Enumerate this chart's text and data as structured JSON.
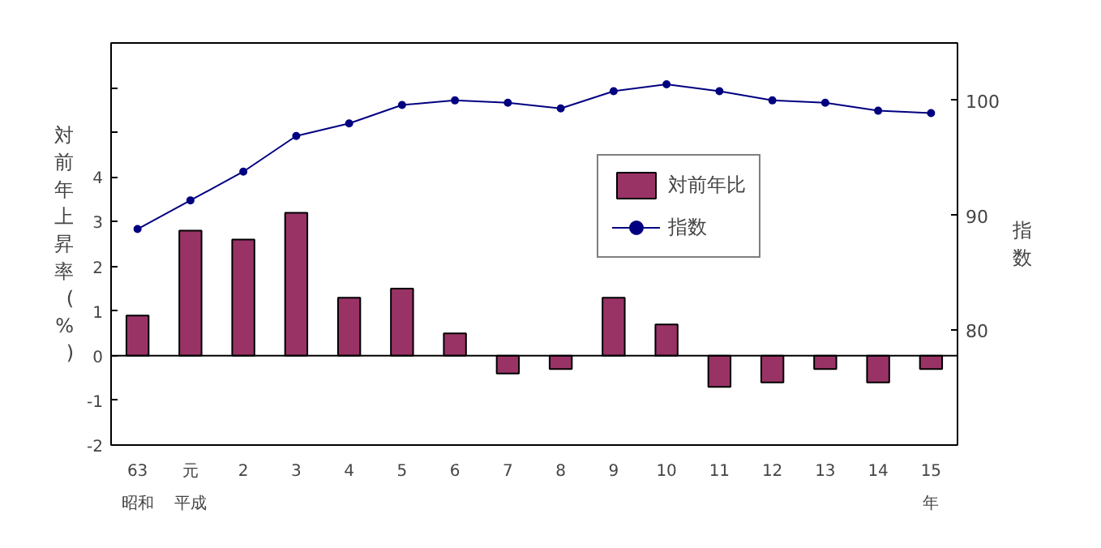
{
  "chart_data": {
    "type": "bar",
    "ylabel": "対前年上昇率 (%)",
    "y2label": "指数",
    "categories": [
      "63",
      "元",
      "2",
      "3",
      "4",
      "5",
      "6",
      "7",
      "8",
      "9",
      "10",
      "11",
      "12",
      "13",
      "14",
      "15"
    ],
    "series": [
      {
        "name": "対前年比",
        "color": "#993366",
        "values": [
          0.9,
          2.8,
          2.6,
          3.2,
          1.3,
          1.5,
          0.5,
          -0.4,
          -0.3,
          1.3,
          0.7,
          -0.7,
          -0.6,
          -0.3,
          -0.6,
          -0.3
        ]
      },
      {
        "name": "指数",
        "type": "line",
        "axis": "y2",
        "color": "#000080",
        "marker": "circle",
        "values": [
          88.8,
          91.3,
          93.8,
          96.9,
          98.0,
          99.6,
          100.0,
          99.8,
          99.3,
          100.8,
          101.4,
          100.8,
          100.0,
          99.8,
          99.1,
          98.9
        ]
      }
    ],
    "annotations": [
      "昭和",
      "平成",
      "年"
    ],
    "ref_lines": [
      {
        "axis": "y",
        "value": 0,
        "color": "#000000"
      }
    ],
    "ylim": [
      -2,
      7
    ],
    "yticks": [
      -2,
      -1,
      0,
      1,
      2,
      3,
      4,
      {
        "value": 5,
        "label": null
      },
      {
        "value": 6,
        "label": null
      }
    ],
    "y2lim": [
      70,
      105
    ],
    "y2ticks": [
      80,
      90,
      100
    ],
    "legend": "right"
  }
}
